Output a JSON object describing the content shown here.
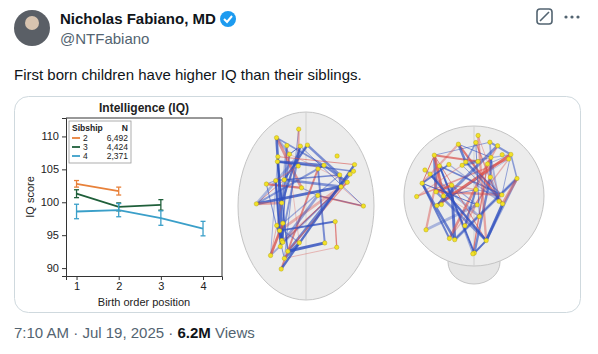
{
  "tweet": {
    "author_name": "Nicholas Fabiano, MD",
    "handle": "@NTFabiano",
    "text": "First born children have higher IQ than their siblings.",
    "time": "7:10 AM",
    "separator": "·",
    "date": "Jul 19, 2025",
    "views": "6.2M",
    "views_word": "Views"
  },
  "chart_data": {
    "type": "line",
    "title": "Intelligence (IQ)",
    "x_label": "Birth order position",
    "y_label": "IQ score",
    "legend_title": "Sibship",
    "legend_n_title": "N",
    "legend": "upper-left",
    "xlim": [
      0.75,
      4.45
    ],
    "ylim": [
      88.8,
      112.8
    ],
    "xticks": [
      1,
      2,
      3,
      4
    ],
    "yticks": [
      90,
      95,
      100,
      105,
      110
    ],
    "series": [
      {
        "name": "2",
        "n": "6,492",
        "color": "#e8813a",
        "x": [
          1,
          2
        ],
        "values": [
          102.8,
          101.7
        ],
        "errors": [
          0.5,
          0.6
        ]
      },
      {
        "name": "3",
        "n": "4,424",
        "color": "#1f5f3a",
        "x": [
          1,
          2,
          3
        ],
        "values": [
          101.3,
          99.3,
          99.6
        ],
        "errors": [
          0.6,
          0.6,
          0.8
        ]
      },
      {
        "name": "4",
        "n": "2,371",
        "color": "#3a9fc9",
        "x": [
          1,
          2,
          3,
          4
        ],
        "values": [
          98.6,
          98.8,
          97.6,
          96.0
        ],
        "errors": [
          1.1,
          1.0,
          1.1,
          1.1
        ]
      }
    ]
  }
}
